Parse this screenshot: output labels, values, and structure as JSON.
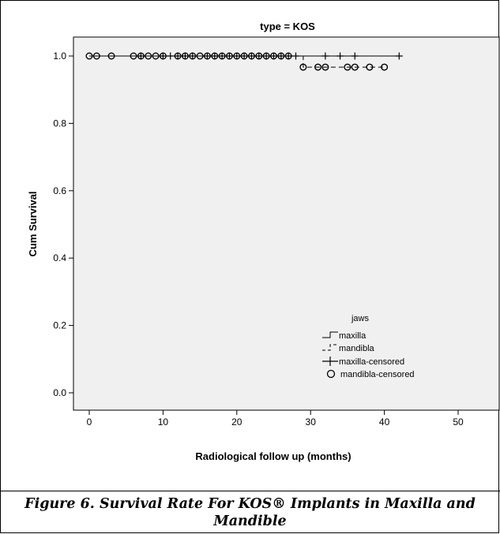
{
  "chart_data": {
    "type": "line",
    "title": "type = KOS",
    "xlabel": "Radiological follow up (months)",
    "ylabel": "Cum Survival",
    "xlim": [
      -2,
      52
    ],
    "ylim": [
      -0.03,
      1.05
    ],
    "x_ticks": [
      0,
      10,
      20,
      30,
      40,
      50
    ],
    "y_ticks": [
      0.0,
      0.2,
      0.4,
      0.6,
      0.8,
      1.0
    ],
    "x_tick_labels": [
      "0",
      "10",
      "20",
      "30",
      "40",
      "50"
    ],
    "y_tick_labels": [
      "0.0",
      "0.2",
      "0.4",
      "0.6",
      "0.8",
      "1.0"
    ],
    "grid": false,
    "legend_title": "jaws",
    "legend_position": "bottom-right",
    "series": [
      {
        "name": "maxilla",
        "style": "solid",
        "steps": [
          [
            0,
            1.0
          ],
          [
            42,
            1.0
          ]
        ]
      },
      {
        "name": "mandibla",
        "style": "dashed",
        "steps": [
          [
            0,
            1.0
          ],
          [
            29,
            1.0
          ],
          [
            29,
            0.967
          ],
          [
            40,
            0.967
          ]
        ]
      },
      {
        "name": "maxilla-censored",
        "marker": "plus",
        "points": [
          [
            7,
            1.0
          ],
          [
            10,
            1.0
          ],
          [
            11,
            1.0
          ],
          [
            12,
            1.0
          ],
          [
            13,
            1.0
          ],
          [
            14,
            1.0
          ],
          [
            16,
            1.0
          ],
          [
            17,
            1.0
          ],
          [
            18,
            1.0
          ],
          [
            19,
            1.0
          ],
          [
            20,
            1.0
          ],
          [
            21,
            1.0
          ],
          [
            22,
            1.0
          ],
          [
            23,
            1.0
          ],
          [
            24,
            1.0
          ],
          [
            25,
            1.0
          ],
          [
            26,
            1.0
          ],
          [
            27,
            1.0
          ],
          [
            28,
            1.0
          ],
          [
            32,
            1.0
          ],
          [
            34,
            1.0
          ],
          [
            36,
            1.0
          ],
          [
            42,
            1.0
          ]
        ]
      },
      {
        "name": "mandibla-censored",
        "marker": "circle",
        "points": [
          [
            0,
            1.0
          ],
          [
            1,
            1.0
          ],
          [
            3,
            1.0
          ],
          [
            6,
            1.0
          ],
          [
            7,
            1.0
          ],
          [
            8,
            1.0
          ],
          [
            9,
            1.0
          ],
          [
            10,
            1.0
          ],
          [
            12,
            1.0
          ],
          [
            13,
            1.0
          ],
          [
            14,
            1.0
          ],
          [
            15,
            1.0
          ],
          [
            16,
            1.0
          ],
          [
            17,
            1.0
          ],
          [
            18,
            1.0
          ],
          [
            19,
            1.0
          ],
          [
            20,
            1.0
          ],
          [
            21,
            1.0
          ],
          [
            22,
            1.0
          ],
          [
            23,
            1.0
          ],
          [
            24,
            1.0
          ],
          [
            25,
            1.0
          ],
          [
            26,
            1.0
          ],
          [
            27,
            1.0
          ],
          [
            29,
            0.967
          ],
          [
            31,
            0.967
          ],
          [
            32,
            0.967
          ],
          [
            35,
            0.967
          ],
          [
            36,
            0.967
          ],
          [
            38,
            0.967
          ],
          [
            40,
            0.967
          ]
        ]
      }
    ],
    "colors": {
      "plot_background": "#f0f0f0",
      "line": "#000000"
    }
  },
  "caption": "Figure 6. Survival Rate For KOS® Implants in Maxilla and\nMandible"
}
